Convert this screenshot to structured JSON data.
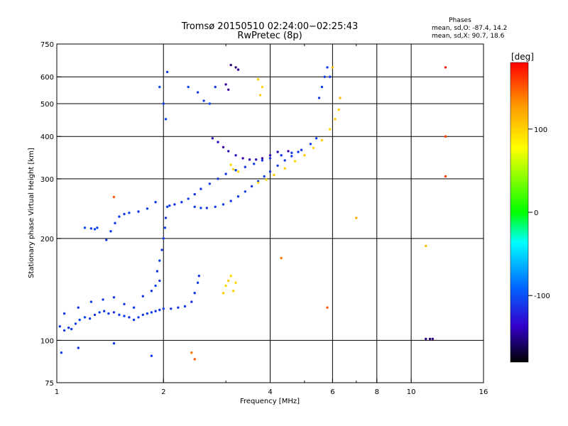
{
  "chart_data": {
    "type": "scatter",
    "title": "Tromsø 20150510 02:24:00−02:25:43",
    "subtitle": "RwPretec (8p)",
    "xlabel": "Frequency [MHz]",
    "ylabel": "Stationary phase Virtual Height [km]",
    "x_scale": "log",
    "y_scale": "log",
    "xlim": [
      1,
      16
    ],
    "ylim": [
      75,
      750
    ],
    "x_ticks": [
      1,
      2,
      4,
      6,
      8,
      10,
      16
    ],
    "y_ticks": [
      75,
      100,
      200,
      300,
      400,
      500,
      600,
      750
    ],
    "grid": true,
    "legend_stats": {
      "title": "Phases",
      "line1": "mean, sd,O: -87.4, 14.2",
      "line2": "mean, sd,X:  90.7, 18.6"
    },
    "colorbar": {
      "label": "[deg]",
      "range": [
        -180,
        180
      ],
      "ticks": [
        100,
        0,
        -100
      ],
      "colors": [
        "#ff0000",
        "#ff9900",
        "#ffff00",
        "#00ff00",
        "#00ffff",
        "#0066ff",
        "#3300cc",
        "#000000"
      ]
    },
    "series": [
      {
        "points": [
          [
            1.02,
            110,
            -110
          ],
          [
            1.05,
            107,
            -110
          ],
          [
            1.08,
            109,
            -112
          ],
          [
            1.1,
            108,
            -108
          ],
          [
            1.13,
            112,
            -110
          ],
          [
            1.16,
            115,
            -105
          ],
          [
            1.2,
            117,
            -108
          ],
          [
            1.24,
            116,
            -110
          ],
          [
            1.28,
            119,
            -112
          ],
          [
            1.32,
            121,
            -105
          ],
          [
            1.36,
            122,
            -110
          ],
          [
            1.4,
            120,
            -108
          ],
          [
            1.45,
            121,
            -115
          ],
          [
            1.5,
            119,
            -110
          ],
          [
            1.55,
            118,
            -108
          ],
          [
            1.6,
            117,
            -112
          ],
          [
            1.65,
            115,
            -110
          ],
          [
            1.7,
            117,
            -108
          ],
          [
            1.75,
            119,
            -112
          ],
          [
            1.8,
            120,
            -110
          ],
          [
            1.85,
            121,
            -108
          ],
          [
            1.9,
            122,
            -112
          ],
          [
            1.95,
            123,
            -110
          ],
          [
            2.0,
            124,
            -108
          ],
          [
            2.1,
            124,
            -112
          ],
          [
            2.2,
            125,
            -110
          ],
          [
            2.3,
            126,
            -108
          ],
          [
            2.4,
            130,
            -112
          ],
          [
            2.45,
            138,
            -110
          ],
          [
            2.5,
            148,
            -108
          ],
          [
            2.52,
            155,
            -112
          ],
          [
            1.05,
            120,
            -110
          ],
          [
            1.15,
            125,
            -112
          ],
          [
            1.25,
            130,
            -108
          ],
          [
            1.35,
            132,
            -110
          ],
          [
            1.45,
            134,
            -112
          ],
          [
            1.55,
            128,
            -110
          ],
          [
            1.65,
            125,
            -108
          ],
          [
            1.75,
            135,
            -112
          ],
          [
            1.85,
            140,
            -110
          ],
          [
            1.9,
            145,
            -108
          ],
          [
            1.95,
            150,
            -112
          ],
          [
            1.92,
            160,
            -110
          ],
          [
            1.95,
            172,
            -108
          ],
          [
            1.98,
            185,
            -112
          ],
          [
            2.0,
            200,
            -110
          ],
          [
            2.02,
            215,
            -108
          ],
          [
            2.03,
            230,
            -112
          ],
          [
            2.05,
            248,
            -110
          ],
          [
            2.08,
            250,
            -108
          ],
          [
            2.15,
            252,
            -112
          ],
          [
            2.25,
            256,
            -110
          ],
          [
            2.35,
            262,
            -108
          ],
          [
            2.45,
            270,
            -112
          ],
          [
            2.55,
            280,
            -110
          ],
          [
            2.7,
            290,
            -108
          ],
          [
            2.85,
            300,
            -112
          ],
          [
            3.0,
            310,
            -110
          ],
          [
            3.2,
            318,
            -108
          ],
          [
            3.4,
            325,
            -112
          ],
          [
            3.6,
            332,
            -110
          ],
          [
            3.8,
            340,
            -108
          ],
          [
            4.0,
            345,
            -112
          ],
          [
            4.3,
            352,
            -110
          ],
          [
            4.6,
            358,
            -108
          ],
          [
            4.9,
            365,
            -112
          ],
          [
            5.2,
            380,
            -110
          ],
          [
            5.4,
            395,
            -108
          ],
          [
            2.45,
            248,
            -110
          ],
          [
            2.55,
            246,
            -108
          ],
          [
            2.65,
            246,
            -112
          ],
          [
            2.8,
            248,
            -110
          ],
          [
            2.95,
            252,
            -108
          ],
          [
            3.1,
            258,
            -112
          ],
          [
            3.25,
            266,
            -110
          ],
          [
            3.4,
            275,
            -108
          ],
          [
            3.55,
            285,
            -112
          ],
          [
            3.7,
            295,
            -110
          ],
          [
            3.85,
            305,
            -108
          ],
          [
            4.0,
            315,
            -112
          ],
          [
            4.2,
            328,
            -110
          ],
          [
            4.4,
            340,
            -108
          ],
          [
            4.6,
            350,
            -112
          ],
          [
            4.8,
            360,
            -110
          ],
          [
            2.75,
            395,
            -130
          ],
          [
            2.85,
            385,
            -130
          ],
          [
            2.95,
            372,
            -135
          ],
          [
            3.05,
            362,
            -130
          ],
          [
            3.2,
            352,
            -130
          ],
          [
            3.35,
            345,
            -135
          ],
          [
            3.5,
            342,
            -130
          ],
          [
            3.65,
            342,
            -130
          ],
          [
            3.8,
            345,
            -135
          ],
          [
            4.0,
            352,
            -130
          ],
          [
            4.2,
            360,
            -130
          ],
          [
            4.5,
            362,
            -135
          ],
          [
            1.2,
            215,
            -105
          ],
          [
            1.25,
            214,
            -108
          ],
          [
            1.28,
            213,
            -105
          ],
          [
            1.3,
            215,
            -108
          ],
          [
            1.38,
            198,
            -110
          ],
          [
            1.42,
            210,
            -108
          ],
          [
            1.46,
            222,
            -110
          ],
          [
            1.5,
            232,
            -108
          ],
          [
            1.55,
            236,
            -110
          ],
          [
            1.6,
            238,
            -108
          ],
          [
            1.7,
            240,
            -110
          ],
          [
            1.8,
            245,
            -108
          ],
          [
            1.9,
            256,
            -110
          ],
          [
            1.95,
            560,
            -105
          ],
          [
            2.0,
            500,
            -108
          ],
          [
            2.03,
            450,
            -105
          ],
          [
            2.05,
            620,
            -110
          ],
          [
            2.35,
            560,
            -105
          ],
          [
            2.5,
            540,
            -110
          ],
          [
            2.6,
            510,
            -108
          ],
          [
            2.7,
            500,
            -105
          ],
          [
            2.8,
            560,
            -110
          ],
          [
            3.1,
            650,
            -150
          ],
          [
            3.2,
            640,
            -150
          ],
          [
            3.25,
            630,
            -140
          ],
          [
            3.0,
            570,
            -140
          ],
          [
            3.05,
            550,
            -140
          ],
          [
            5.5,
            520,
            -110
          ],
          [
            5.6,
            560,
            -108
          ],
          [
            5.7,
            600,
            -110
          ],
          [
            5.8,
            640,
            -108
          ],
          [
            5.9,
            600,
            -110
          ],
          [
            1.03,
            92,
            -110
          ],
          [
            1.15,
            95,
            -112
          ],
          [
            1.45,
            98,
            -108
          ],
          [
            1.85,
            90,
            -110
          ],
          [
            11.0,
            101,
            -145
          ],
          [
            11.3,
            101,
            -150
          ],
          [
            11.5,
            101,
            -145
          ]
        ]
      },
      {
        "points": [
          [
            3.7,
            292,
            95
          ],
          [
            3.9,
            298,
            95
          ],
          [
            4.1,
            308,
            100
          ],
          [
            4.4,
            322,
            100
          ],
          [
            4.7,
            338,
            95
          ],
          [
            5.0,
            352,
            100
          ],
          [
            5.3,
            370,
            95
          ],
          [
            5.6,
            390,
            100
          ],
          [
            5.9,
            420,
            95
          ],
          [
            6.1,
            450,
            100
          ],
          [
            6.25,
            480,
            100
          ],
          [
            3.0,
            145,
            95
          ],
          [
            3.05,
            150,
            100
          ],
          [
            3.1,
            155,
            95
          ],
          [
            3.15,
            140,
            100
          ],
          [
            3.2,
            148,
            95
          ],
          [
            2.95,
            138,
            100
          ],
          [
            3.1,
            330,
            95
          ],
          [
            3.15,
            320,
            100
          ],
          [
            3.25,
            315,
            95
          ],
          [
            3.7,
            590,
            100
          ],
          [
            3.8,
            560,
            95
          ],
          [
            3.75,
            530,
            100
          ],
          [
            6.0,
            640,
            110
          ],
          [
            6.3,
            520,
            110
          ],
          [
            2.4,
            92,
            140
          ],
          [
            2.45,
            88,
            150
          ],
          [
            1.45,
            265,
            150
          ],
          [
            12.5,
            305,
            160
          ],
          [
            12.5,
            400,
            160
          ],
          [
            12.5,
            640,
            170
          ],
          [
            11.0,
            190,
            110
          ],
          [
            7.0,
            230,
            120
          ],
          [
            4.3,
            175,
            140
          ],
          [
            5.8,
            125,
            150
          ]
        ]
      }
    ]
  }
}
